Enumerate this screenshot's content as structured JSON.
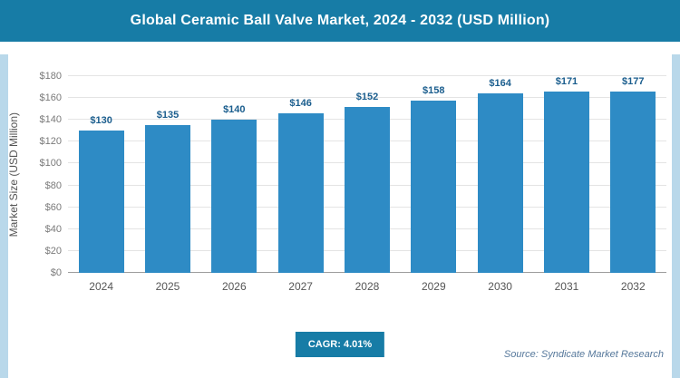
{
  "header": {
    "title": "Global Ceramic Ball Valve Market, 2024 - 2032 (USD Million)",
    "bg_color": "#177ca6"
  },
  "chart_data": {
    "type": "bar",
    "title": "Global Ceramic Ball Valve Market, 2024 - 2032 (USD Million)",
    "categories": [
      "2024",
      "2025",
      "2026",
      "2027",
      "2028",
      "2029",
      "2030",
      "2031",
      "2032"
    ],
    "values": [
      130,
      135,
      140,
      146,
      152,
      158,
      164,
      171,
      177
    ],
    "value_labels": [
      "$130",
      "$135",
      "$140",
      "$146",
      "$152",
      "$158",
      "$164",
      "$171",
      "$177"
    ],
    "xlabel": "",
    "ylabel": "Market Size (USD Million)",
    "ylim": [
      0,
      180
    ],
    "ytick_step": 20,
    "ytick_labels": [
      "$0",
      "$20",
      "$40",
      "$60",
      "$80",
      "$100",
      "$120",
      "$140",
      "$160",
      "$180"
    ],
    "grid": true,
    "legend": "none",
    "bar_color": "#2e8bc5",
    "value_label_color": "#1b5e8e"
  },
  "footer": {
    "cagr_label": "CAGR: 4.01%",
    "source": "Source: Syndicate Market Research"
  }
}
